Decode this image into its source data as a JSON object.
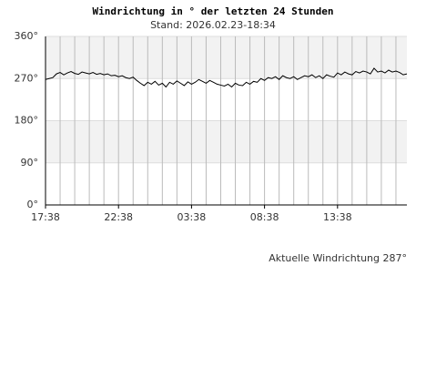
{
  "chart_data": {
    "type": "line",
    "title": "Windrichtung in ° der letzten 24 Stunden",
    "subtitle": "Stand: 2026.02.23-18:34",
    "annotation": "Aktuelle Windrichtung 287°",
    "color": "#000000",
    "grid": true,
    "categories": [
      "17:38",
      null,
      null,
      null,
      null,
      null,
      null,
      null,
      null,
      null,
      null,
      null,
      null,
      null,
      null,
      null,
      null,
      null,
      null,
      null,
      "22:38",
      null,
      null,
      null,
      null,
      null,
      null,
      null,
      null,
      null,
      null,
      null,
      null,
      null,
      null,
      null,
      null,
      null,
      null,
      null,
      "03:38",
      null,
      null,
      null,
      null,
      null,
      null,
      null,
      null,
      null,
      null,
      null,
      null,
      null,
      null,
      null,
      null,
      null,
      null,
      null,
      "08:38",
      null,
      null,
      null,
      null,
      null,
      null,
      null,
      null,
      null,
      null,
      null,
      null,
      null,
      null,
      null,
      null,
      null,
      null,
      null,
      "13:38",
      null,
      null,
      null,
      null,
      null,
      null,
      null,
      null,
      null,
      null,
      null,
      null,
      null,
      null,
      null,
      null,
      null,
      null,
      null
    ],
    "values": [
      268,
      270,
      272,
      280,
      283,
      278,
      282,
      285,
      281,
      279,
      284,
      282,
      280,
      283,
      279,
      281,
      278,
      280,
      276,
      277,
      274,
      276,
      272,
      270,
      273,
      266,
      260,
      255,
      262,
      258,
      264,
      256,
      260,
      252,
      262,
      258,
      265,
      260,
      255,
      263,
      258,
      262,
      268,
      264,
      260,
      266,
      262,
      258,
      256,
      254,
      258,
      252,
      260,
      256,
      255,
      262,
      258,
      264,
      262,
      270,
      266,
      272,
      270,
      274,
      268,
      276,
      272,
      270,
      274,
      268,
      272,
      276,
      274,
      278,
      272,
      276,
      270,
      278,
      275,
      273,
      282,
      278,
      284,
      280,
      278,
      285,
      282,
      286,
      284,
      280,
      292,
      284,
      286,
      282,
      288,
      284,
      286,
      283,
      278,
      280
    ],
    "ylim": [
      0,
      360
    ],
    "yticks": [
      {
        "value": 0,
        "label": "0°"
      },
      {
        "value": 90,
        "label": "90°"
      },
      {
        "value": 180,
        "label": "180°"
      },
      {
        "value": 270,
        "label": "270°"
      },
      {
        "value": 360,
        "label": "360°"
      }
    ]
  }
}
